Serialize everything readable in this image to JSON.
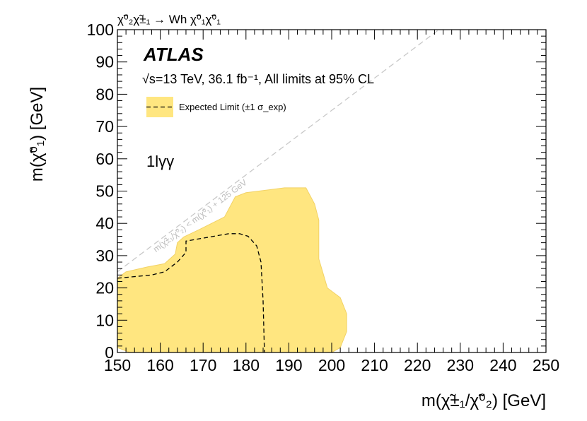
{
  "chart_data": {
    "type": "area",
    "process_label": "χ̃⁰₂χ̃±₁ → Wh χ̃⁰₁χ̃⁰₁",
    "xlabel": "m(χ̃±₁/χ̃⁰₂) [GeV]",
    "ylabel": "m(χ̃⁰₁) [GeV]",
    "xlim": [
      150,
      250
    ],
    "ylim": [
      0,
      100
    ],
    "x_ticks": [
      "150",
      "160",
      "170",
      "180",
      "190",
      "200",
      "210",
      "220",
      "230",
      "240",
      "250"
    ],
    "y_ticks": [
      "0",
      "10",
      "20",
      "30",
      "40",
      "50",
      "60",
      "70",
      "80",
      "90",
      "100"
    ],
    "experiment_label": "ATLAS",
    "info_text": "√s=13 TeV, 36.1 fb⁻¹, All limits at 95% CL",
    "region_label": "1lγγ",
    "kinematic_line_label": "m(χ̃±₁/χ̃⁰₂) < m(χ̃⁰₁) + 125 GeV",
    "kinematic_line": {
      "x": [
        150,
        225
      ],
      "y": [
        25,
        100
      ]
    },
    "legend": {
      "label": "Expected Limit (±1 σ_exp)",
      "placement": "top-left"
    },
    "colors": {
      "band": "#ffe680",
      "band_edge": "#f2d266",
      "expected": "#000000",
      "kinematic": "#c8c8c8"
    },
    "series": [
      {
        "name": "Expected Limit (±1 σ_exp)",
        "style": "band",
        "x": [
          150,
          150,
          152,
          157,
          159,
          161,
          163.5,
          164,
          165.5,
          169,
          175,
          177.5,
          180,
          189,
          194,
          196,
          197,
          197,
          199,
          202,
          203.5,
          203.5,
          202,
          200,
          153,
          150
        ],
        "y": [
          1.5,
          23,
          25,
          26.5,
          27,
          27.5,
          30.5,
          34,
          35.8,
          38,
          42,
          48.2,
          49.5,
          51,
          51,
          46,
          41,
          29,
          20,
          17,
          12,
          6.5,
          1.5,
          0,
          0,
          1.5
        ]
      },
      {
        "name": "Expected Limit (±1 σ_exp)",
        "style": "dashed",
        "x": [
          150,
          158,
          161,
          164,
          166,
          166,
          176,
          178.5,
          180.5,
          182.5,
          183.5,
          184,
          184.3
        ],
        "y": [
          23,
          24,
          25,
          28,
          31,
          34.5,
          36.8,
          36.8,
          36,
          33,
          28,
          16,
          0
        ]
      }
    ]
  }
}
